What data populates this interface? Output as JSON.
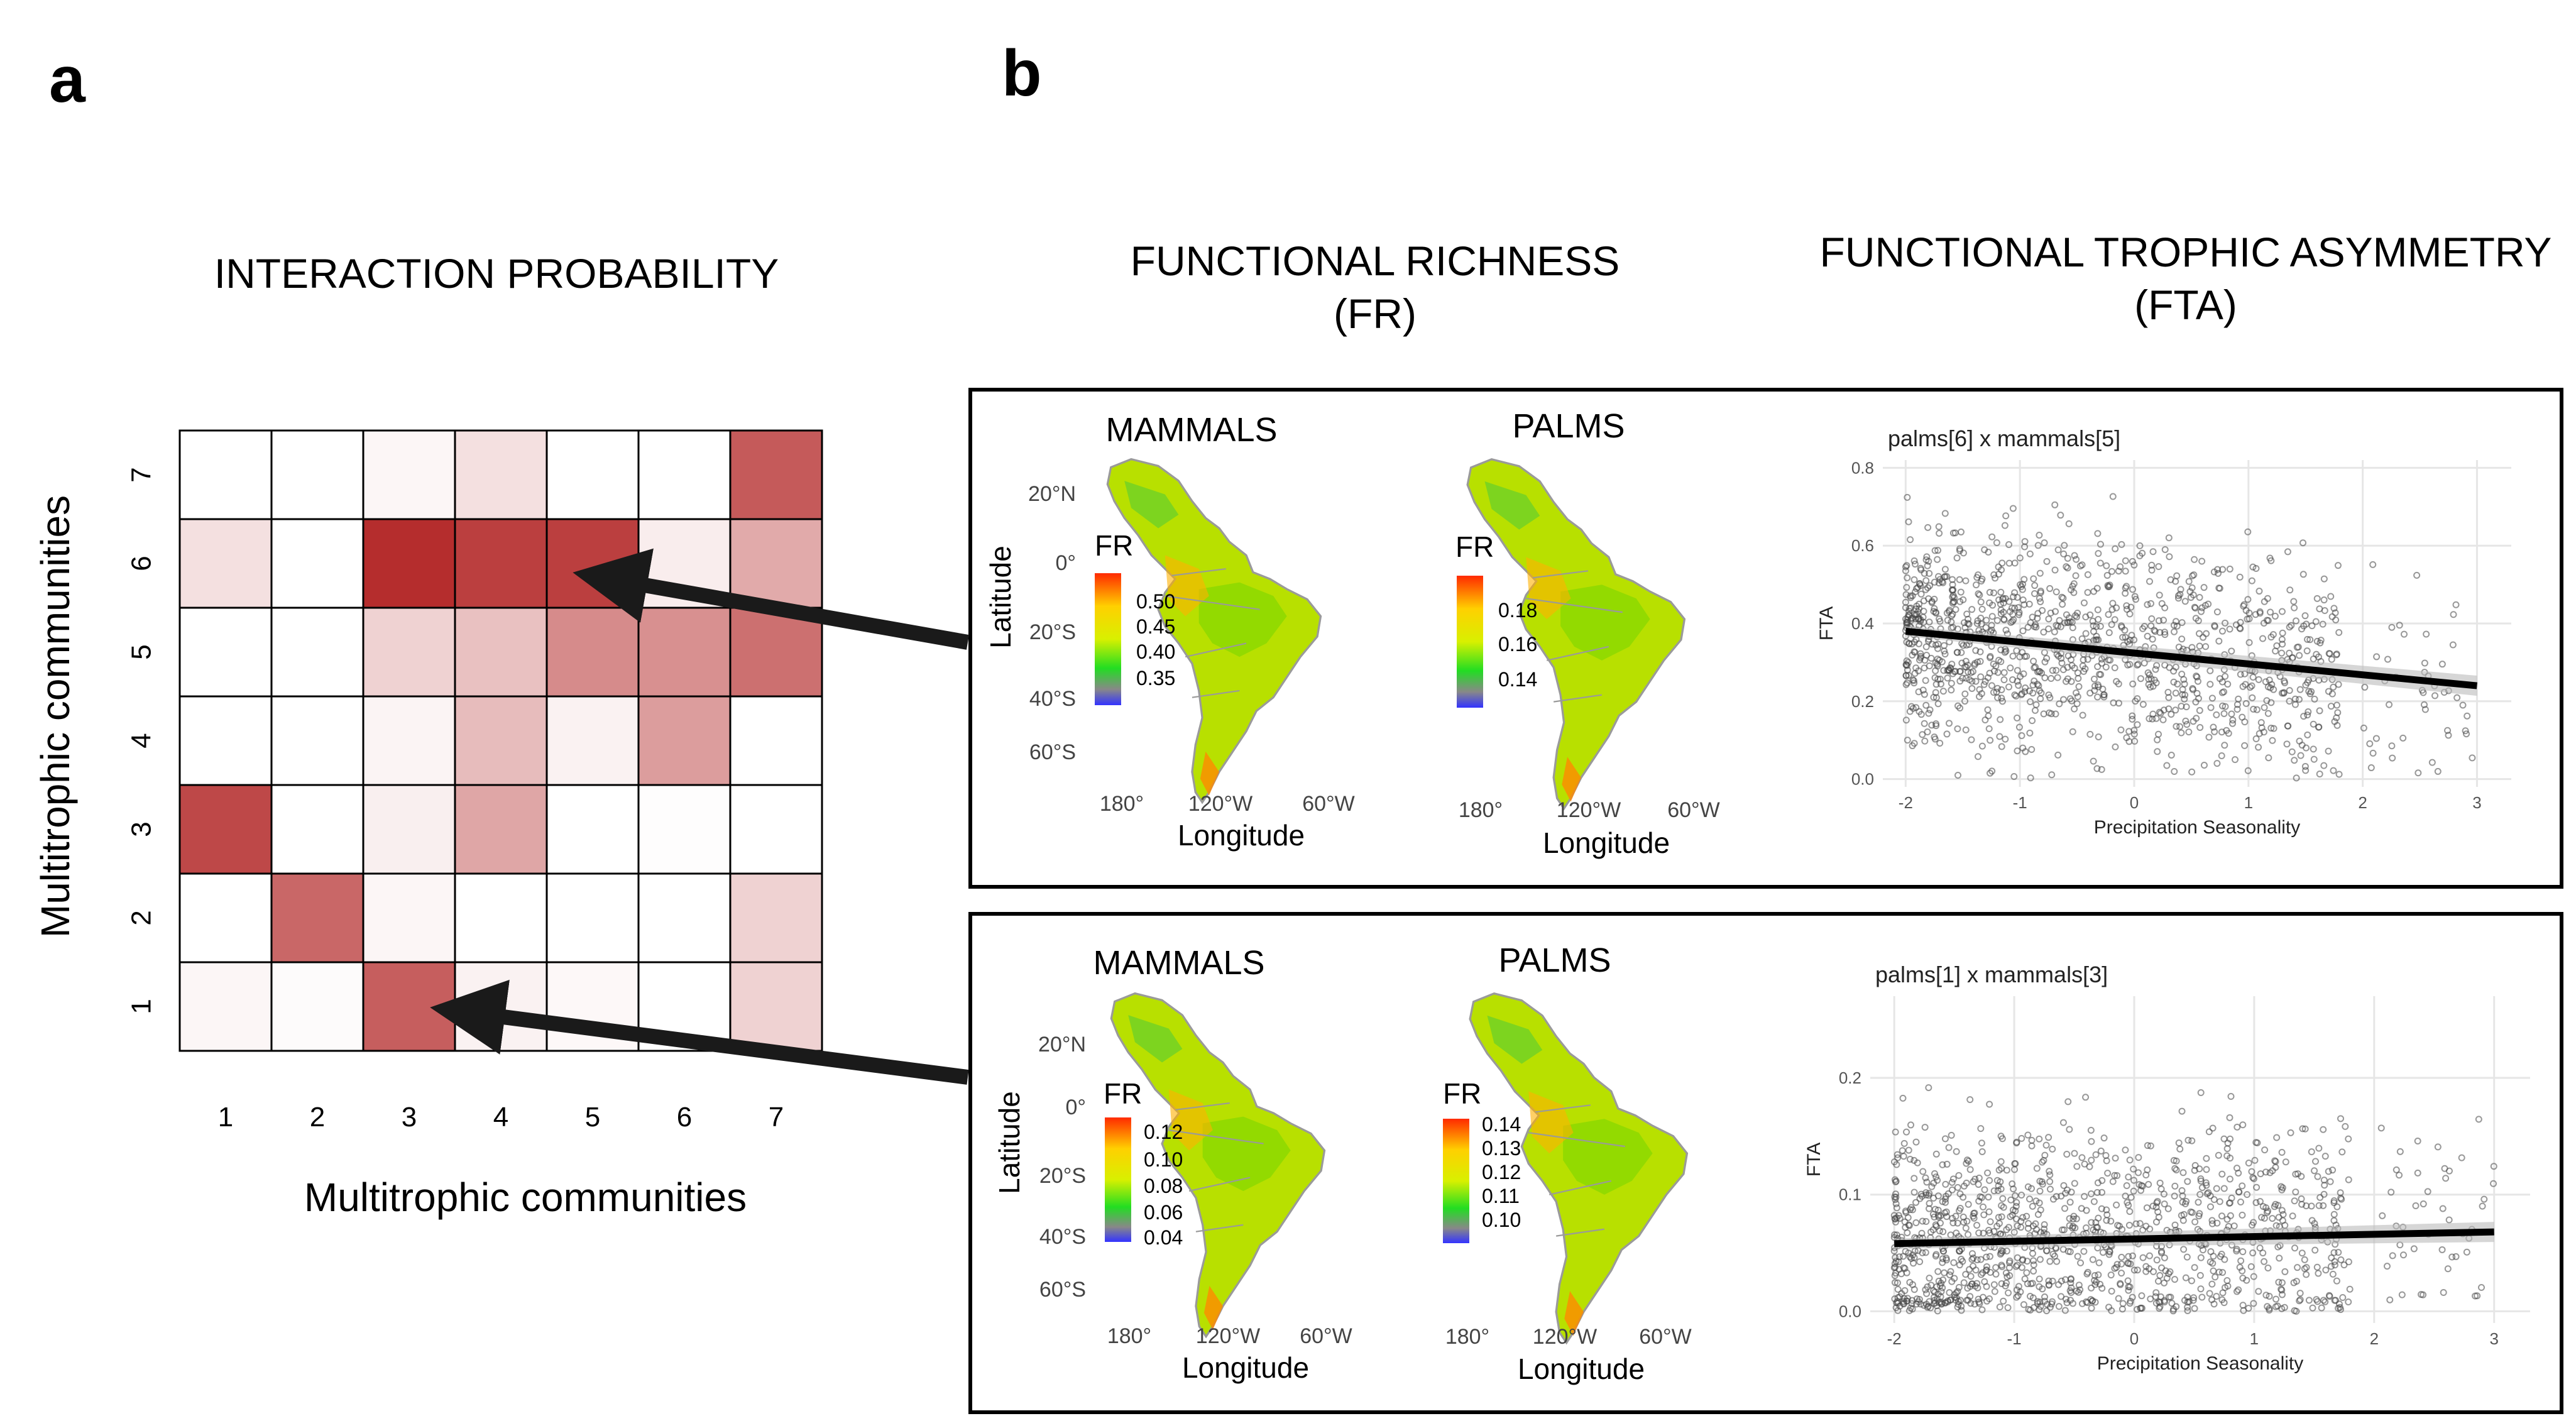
{
  "panel_a": {
    "letter": "a",
    "heading": "INTERACTION PROBABILITY",
    "x_label": "Multitrophic communities",
    "y_label": "Multitrophic communities",
    "x_ticks": [
      "1",
      "2",
      "3",
      "4",
      "5",
      "6",
      "7"
    ],
    "y_ticks": [
      "1",
      "2",
      "3",
      "4",
      "5",
      "6",
      "7"
    ],
    "matrix_note": "rows listed from community 7 (top) to 1 (bottom); values are relative interaction probability 0-1",
    "matrix": [
      [
        0.0,
        0.0,
        0.04,
        0.14,
        0.0,
        0.0,
        0.74
      ],
      [
        0.14,
        0.0,
        0.94,
        0.86,
        0.86,
        0.08,
        0.38
      ],
      [
        0.0,
        0.0,
        0.2,
        0.28,
        0.52,
        0.5,
        0.64
      ],
      [
        0.0,
        0.0,
        0.05,
        0.3,
        0.06,
        0.44,
        0.0
      ],
      [
        0.82,
        0.0,
        0.07,
        0.4,
        0.0,
        0.01,
        0.0
      ],
      [
        0.0,
        0.68,
        0.04,
        0.0,
        0.0,
        0.0,
        0.2
      ],
      [
        0.04,
        0.02,
        0.72,
        0.06,
        0.03,
        0.0,
        0.2
      ]
    ],
    "color_low": "#ffffff",
    "color_high": "#b02020"
  },
  "panel_b": {
    "letter": "b",
    "heading_fr": "FUNCTIONAL RICHNESS",
    "heading_fr_abbr": "(FR)",
    "heading_fta": "FUNCTIONAL TROPHIC ASYMMETRY",
    "heading_fta_abbr": "(FTA)",
    "rows": [
      {
        "mammals_label": "MAMMALS",
        "palms_label": "PALMS",
        "map_axes": {
          "lat_label": "Latitude",
          "lon_label": "Longitude",
          "lat_ticks": [
            "20°N",
            "0°",
            "20°S",
            "40°S",
            "60°S"
          ],
          "lon_ticks": [
            "180°",
            "120°W",
            "60°W"
          ]
        },
        "mammals_legend": {
          "title": "FR",
          "ticks": [
            "0.50",
            "0.45",
            "0.40",
            "0.35"
          ]
        },
        "palms_legend": {
          "title": "FR",
          "ticks": [
            "0.18",
            "0.16",
            "0.14"
          ]
        },
        "scatter": {
          "title": "palms[6] x mammals[5]",
          "xlabel": "Precipitation Seasonality",
          "ylabel": "FTA",
          "x_ticks": [
            "-2",
            "-1",
            "0",
            "1",
            "2",
            "3"
          ],
          "y_ticks": [
            "0.0",
            "0.2",
            "0.4",
            "0.6",
            "0.8"
          ]
        }
      },
      {
        "mammals_label": "MAMMALS",
        "palms_label": "PALMS",
        "map_axes": {
          "lat_label": "Latitude",
          "lon_label": "Longitude",
          "lat_ticks": [
            "20°N",
            "0°",
            "20°S",
            "40°S",
            "60°S"
          ],
          "lon_ticks": [
            "180°",
            "120°W",
            "60°W"
          ]
        },
        "mammals_legend": {
          "title": "FR",
          "ticks": [
            "0.12",
            "0.10",
            "0.08",
            "0.06",
            "0.04"
          ]
        },
        "palms_legend": {
          "title": "FR",
          "ticks": [
            "0.14",
            "0.13",
            "0.12",
            "0.11",
            "0.10"
          ]
        },
        "scatter": {
          "title": "palms[1] x mammals[3]",
          "xlabel": "Precipitation Seasonality",
          "ylabel": "FTA",
          "x_ticks": [
            "-2",
            "-1",
            "0",
            "1",
            "2",
            "3"
          ],
          "y_ticks": [
            "0.0",
            "0.1",
            "0.2"
          ]
        }
      }
    ]
  },
  "chart_data": [
    {
      "type": "heatmap",
      "title": "INTERACTION PROBABILITY",
      "xlabel": "Multitrophic communities",
      "ylabel": "Multitrophic communities",
      "x": [
        1,
        2,
        3,
        4,
        5,
        6,
        7
      ],
      "y": [
        7,
        6,
        5,
        4,
        3,
        2,
        1
      ],
      "legend": "none"
    },
    {
      "type": "scatter",
      "title": "palms[6] x mammals[5]",
      "xlabel": "Precipitation Seasonality",
      "ylabel": "FTA",
      "xlim": [
        -2.2,
        3.3
      ],
      "ylim": [
        -0.02,
        0.82
      ],
      "n_points": 1200,
      "x_range": [
        -2,
        3
      ],
      "y_range": [
        0,
        0.77
      ],
      "fit": {
        "x": [
          -2,
          3
        ],
        "y": [
          0.38,
          0.24
        ]
      },
      "grid": true
    },
    {
      "type": "scatter",
      "title": "palms[1] x mammals[3]",
      "xlabel": "Precipitation Seasonality",
      "ylabel": "FTA",
      "xlim": [
        -2.2,
        3.3
      ],
      "ylim": [
        -0.01,
        0.27
      ],
      "n_points": 1200,
      "x_range": [
        -2,
        3
      ],
      "y_range": [
        0,
        0.26
      ],
      "fit": {
        "x": [
          -2,
          3
        ],
        "y": [
          0.058,
          0.068
        ]
      },
      "grid": true
    }
  ]
}
